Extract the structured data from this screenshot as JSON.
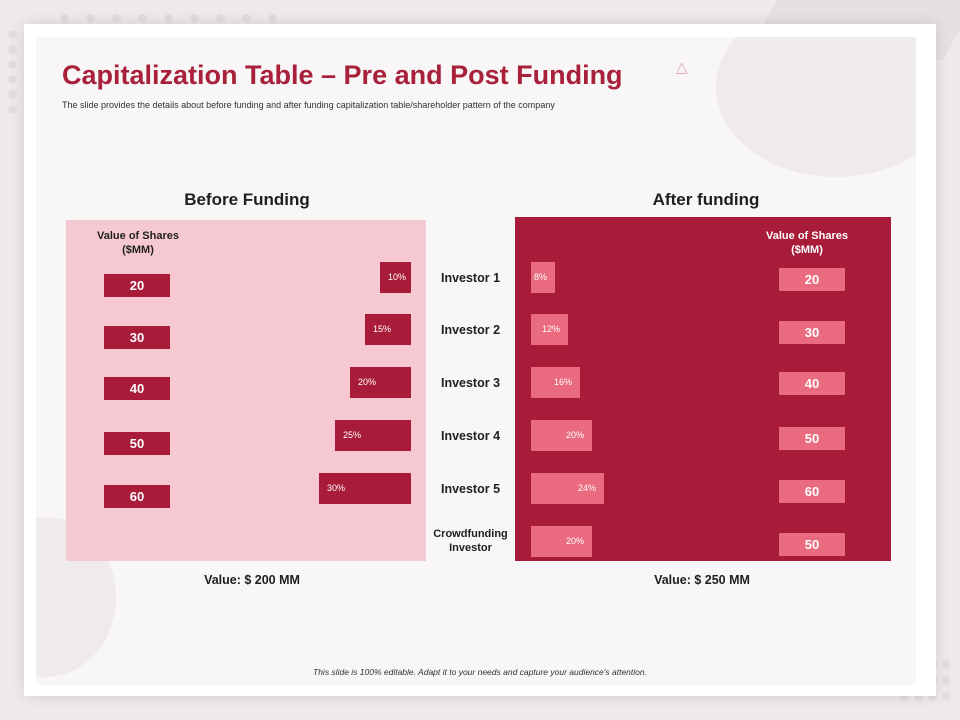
{
  "title": "Capitalization Table – Pre and Post Funding",
  "subtitle": "The slide provides the details about before funding and after funding capitalization table/shareholder pattern of the company",
  "footer": "This slide is 100% editable. Adapt it to your needs and capture your audience's attention.",
  "colors": {
    "accent": "#a81c3a",
    "light_panel": "#f6c9d2",
    "after_bar": "#ea6b7f"
  },
  "chart_data": [
    {
      "type": "bar",
      "title": "Before Funding",
      "shares_header": "Value of Shares ($MM)",
      "shares_header_lines": [
        "Value of Shares",
        "($MM)"
      ],
      "categories": [
        "Investor 1",
        "Investor 2",
        "Investor 3",
        "Investor 4",
        "Investor 5"
      ],
      "values": [
        10,
        15,
        20,
        25,
        30
      ],
      "value_labels": [
        "10%",
        "15%",
        "20%",
        "25%",
        "30%"
      ],
      "share_values": [
        "20",
        "30",
        "40",
        "50",
        "60"
      ],
      "total_label": "Value: $ 200 MM",
      "unit": "%"
    },
    {
      "type": "bar",
      "title": "After funding",
      "shares_header": "Value of Shares ($MM)",
      "shares_header_lines": [
        "Value of Shares",
        "($MM)"
      ],
      "categories": [
        "Investor 1",
        "Investor 2",
        "Investor 3",
        "Investor 4",
        "Investor 5",
        "Crowdfunding Investor"
      ],
      "values": [
        8,
        12,
        16,
        20,
        24,
        20
      ],
      "value_labels": [
        "8%",
        "12%",
        "16%",
        "20%",
        "24%",
        "20%"
      ],
      "share_values": [
        "20",
        "30",
        "40",
        "50",
        "60",
        "50"
      ],
      "total_label": "Value: $ 250 MM",
      "unit": "%"
    }
  ],
  "investor_labels": [
    "Investor 1",
    "Investor 2",
    "Investor 3",
    "Investor 4",
    "Investor 5"
  ],
  "crowdfunding_label_lines": [
    "Crowdfunding",
    "Investor"
  ]
}
